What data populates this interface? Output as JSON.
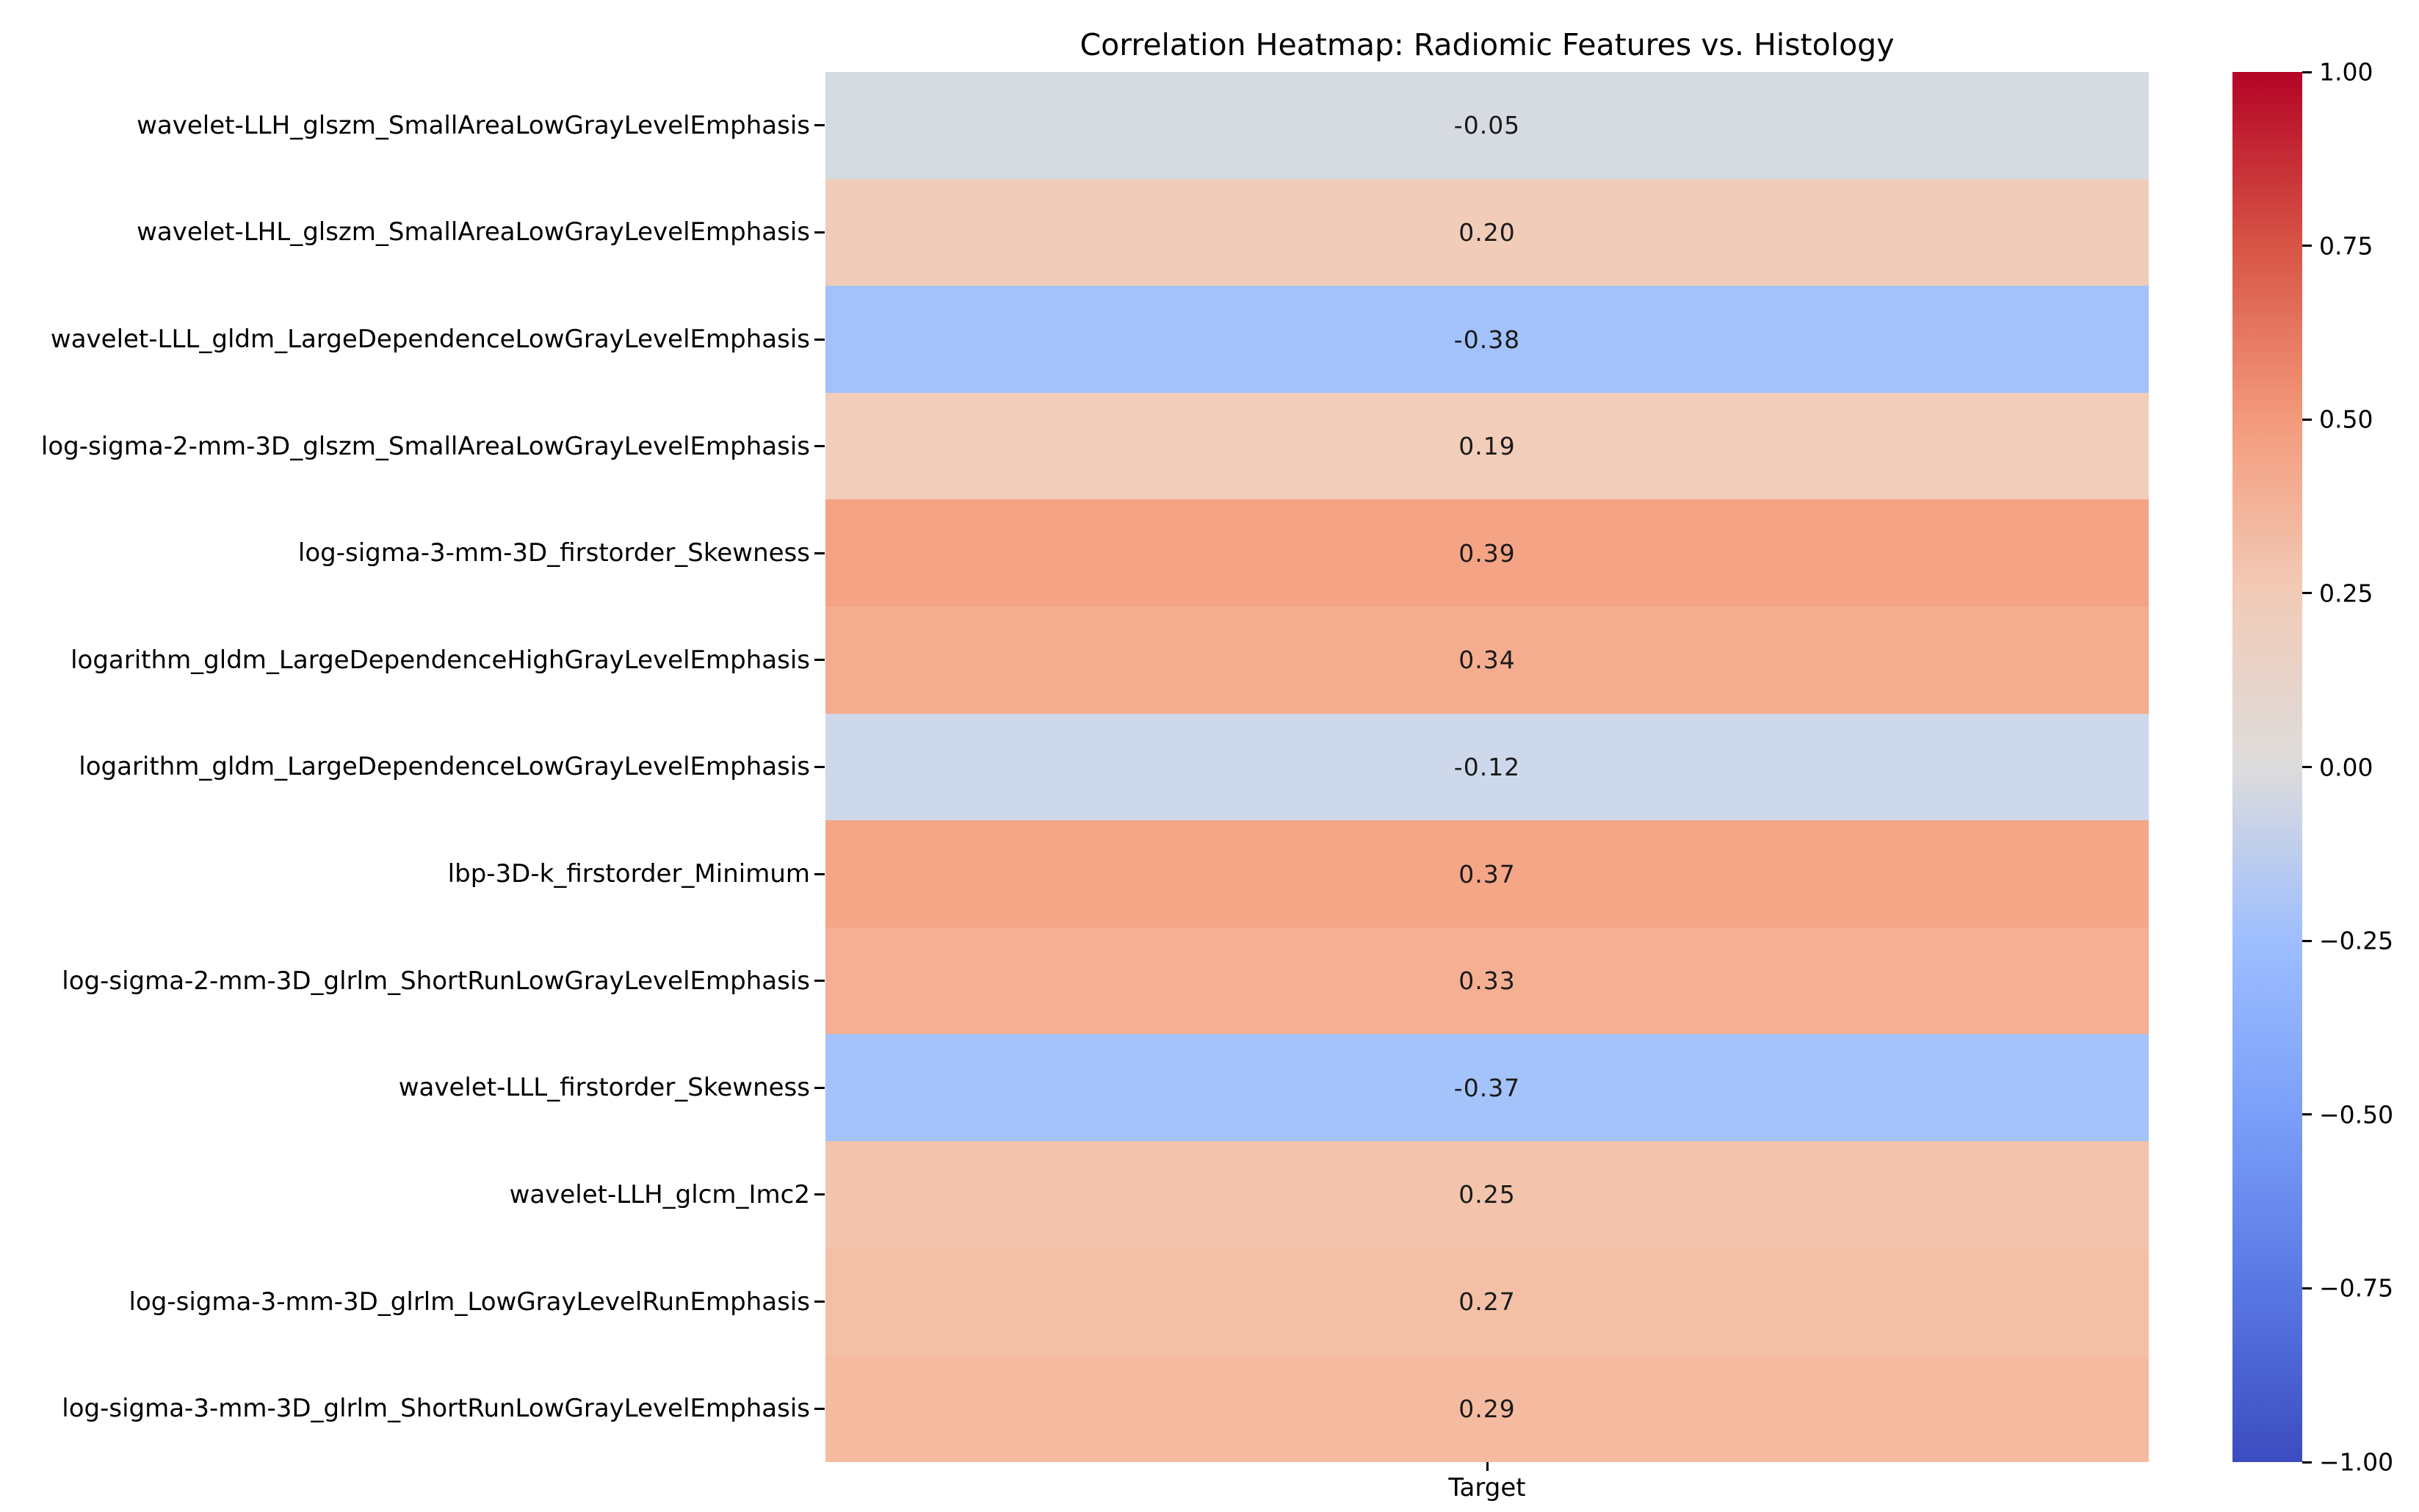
{
  "title": "Correlation Heatmap: Radiomic Features vs. Histology",
  "x_axis": {
    "tick_label": "Target"
  },
  "colorbar": {
    "tick_labels": [
      "1.00",
      "0.75",
      "0.50",
      "0.25",
      "0.00",
      "−0.25",
      "−0.50",
      "−0.75",
      "−1.00"
    ],
    "gradient_stops_top_to_bottom": [
      "#b40426",
      "#d75445",
      "#f49a7b",
      "#f2cbb7",
      "#dddcdc",
      "#9ebeff",
      "#7b9ff9",
      "#5977e3",
      "#3b4cc0"
    ]
  },
  "chart_data": {
    "type": "heatmap",
    "title": "Correlation Heatmap: Radiomic Features vs. Histology",
    "x_categories": [
      "Target"
    ],
    "colormap": "coolwarm",
    "value_range": [
      -1,
      1
    ],
    "colorbar_ticks": [
      1.0,
      0.75,
      0.5,
      0.25,
      0.0,
      -0.25,
      -0.5,
      -0.75,
      -1.0
    ],
    "legend_position": "right-colorbar",
    "grid": false,
    "rows": [
      {
        "label": "wavelet-LLH_glszm_SmallAreaLowGrayLevelEmphasis",
        "value": -0.05,
        "display": "-0.05",
        "cell_color": "#d6dbe2"
      },
      {
        "label": "wavelet-LHL_glszm_SmallAreaLowGrayLevelEmphasis",
        "value": 0.2,
        "display": "0.20",
        "cell_color": "#f1ccb8"
      },
      {
        "label": "wavelet-LLL_gldm_LargeDependenceLowGrayLevelEmphasis",
        "value": -0.38,
        "display": "-0.38",
        "cell_color": "#a3c2fb"
      },
      {
        "label": "log-sigma-2-mm-3D_glszm_SmallAreaLowGrayLevelEmphasis",
        "value": 0.19,
        "display": "0.19",
        "cell_color": "#f2cdba"
      },
      {
        "label": "log-sigma-3-mm-3D_firstorder_Skewness",
        "value": 0.39,
        "display": "0.39",
        "cell_color": "#f4a385"
      },
      {
        "label": "logarithm_gldm_LargeDependenceHighGrayLevelEmphasis",
        "value": 0.34,
        "display": "0.34",
        "cell_color": "#f5ad90"
      },
      {
        "label": "logarithm_gldm_LargeDependenceLowGrayLevelEmphasis",
        "value": -0.12,
        "display": "-0.12",
        "cell_color": "#cdd8eb"
      },
      {
        "label": "lbp-3D-k_firstorder_Minimum",
        "value": 0.37,
        "display": "0.37",
        "cell_color": "#f4a687"
      },
      {
        "label": "log-sigma-2-mm-3D_glrlm_ShortRunLowGrayLevelEmphasis",
        "value": 0.33,
        "display": "0.33",
        "cell_color": "#f5af93"
      },
      {
        "label": "wavelet-LLL_firstorder_Skewness",
        "value": -0.37,
        "display": "-0.37",
        "cell_color": "#a4c3fb"
      },
      {
        "label": "wavelet-LLH_glcm_Imc2",
        "value": 0.25,
        "display": "0.25",
        "cell_color": "#f3c4ab"
      },
      {
        "label": "log-sigma-3-mm-3D_glrlm_LowGrayLevelRunEmphasis",
        "value": 0.27,
        "display": "0.27",
        "cell_color": "#f3c0a6"
      },
      {
        "label": "log-sigma-3-mm-3D_glrlm_ShortRunLowGrayLevelEmphasis",
        "value": 0.29,
        "display": "0.29",
        "cell_color": "#f4bba0"
      }
    ]
  }
}
